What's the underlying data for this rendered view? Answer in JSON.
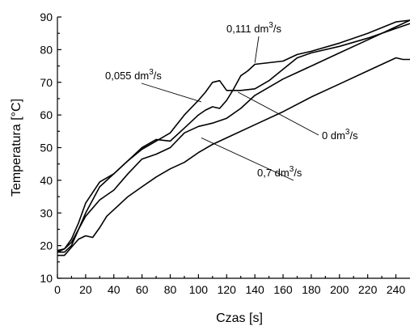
{
  "chart_data": {
    "type": "line",
    "xlabel": "Czas [s]",
    "ylabel": "Temperatura [°C]",
    "xlim": [
      0,
      250
    ],
    "ylim": [
      10,
      90
    ],
    "xticks": [
      0,
      20,
      40,
      60,
      80,
      100,
      120,
      140,
      160,
      180,
      200,
      220,
      240
    ],
    "yticks": [
      10,
      20,
      30,
      40,
      50,
      60,
      70,
      80,
      90
    ],
    "grid": false,
    "legend": "none",
    "line_color": "#000000",
    "series": [
      {
        "name": "0,111 dm3/s",
        "x": [
          0,
          5,
          10,
          15,
          20,
          30,
          40,
          50,
          60,
          70,
          80,
          90,
          100,
          105,
          110,
          115,
          120,
          125,
          130,
          135,
          140,
          150,
          160,
          170,
          180,
          200,
          220,
          240,
          250
        ],
        "y": [
          18.5,
          19,
          21,
          25,
          30,
          38,
          42,
          46,
          50,
          52.5,
          52,
          56,
          60,
          61.5,
          62.5,
          62,
          64.5,
          68,
          72,
          73.5,
          75.5,
          76,
          76.5,
          78.5,
          79.5,
          82,
          85,
          88.5,
          89
        ]
      },
      {
        "name": "0,055 dm3/s",
        "x": [
          0,
          5,
          10,
          15,
          20,
          30,
          40,
          50,
          60,
          70,
          80,
          90,
          100,
          105,
          110,
          115,
          120,
          130,
          140,
          150,
          160,
          170,
          180,
          200,
          220,
          240,
          250
        ],
        "y": [
          18,
          19,
          22,
          27,
          33,
          39.5,
          42,
          46,
          49.5,
          52,
          54.5,
          60,
          64.5,
          67,
          70,
          70.5,
          67.5,
          67.5,
          68,
          70.5,
          74,
          77.5,
          79,
          81,
          83.5,
          86.5,
          88
        ]
      },
      {
        "name": "0 dm3/s",
        "x": [
          0,
          5,
          10,
          15,
          20,
          30,
          40,
          50,
          60,
          70,
          80,
          90,
          100,
          110,
          120,
          130,
          140,
          150,
          160,
          170,
          180,
          200,
          220,
          240,
          250
        ],
        "y": [
          18,
          18,
          20,
          25,
          29,
          34,
          37,
          42,
          46.5,
          48,
          50,
          54.5,
          56.5,
          57.5,
          59,
          62,
          66,
          68.5,
          71,
          73,
          75,
          79,
          83,
          87,
          89
        ]
      },
      {
        "name": "0,7 dm3/s",
        "x": [
          0,
          5,
          10,
          15,
          20,
          25,
          30,
          35,
          40,
          50,
          60,
          70,
          80,
          90,
          100,
          110,
          120,
          140,
          160,
          180,
          200,
          220,
          240,
          245,
          250
        ],
        "y": [
          17,
          17,
          19.5,
          22,
          23,
          22.5,
          25.5,
          29,
          31,
          35,
          38,
          41,
          43.5,
          45.5,
          48.5,
          51,
          53,
          57,
          61,
          65.5,
          69.5,
          73.5,
          77.5,
          77,
          77
        ]
      }
    ],
    "annotations": [
      {
        "label": "0,111 dm",
        "sup": "3",
        "unit": "/s",
        "tx": 280,
        "ty": 40,
        "arrow_x": 140,
        "arrow_y": 76
      },
      {
        "label": "0,055 dm",
        "sup": "3",
        "unit": "/s",
        "tx": 130,
        "ty": 98,
        "arrow_x": 102,
        "arrow_y": 64
      },
      {
        "label": "0 dm",
        "sup": "3",
        "unit": "/s",
        "tx": 398,
        "ty": 172,
        "arrow_x": 128,
        "arrow_y": 67
      },
      {
        "label": "0,7 dm",
        "sup": "3",
        "unit": "/s",
        "tx": 318,
        "ty": 218,
        "arrow_x": 102,
        "arrow_y": 53
      }
    ]
  }
}
